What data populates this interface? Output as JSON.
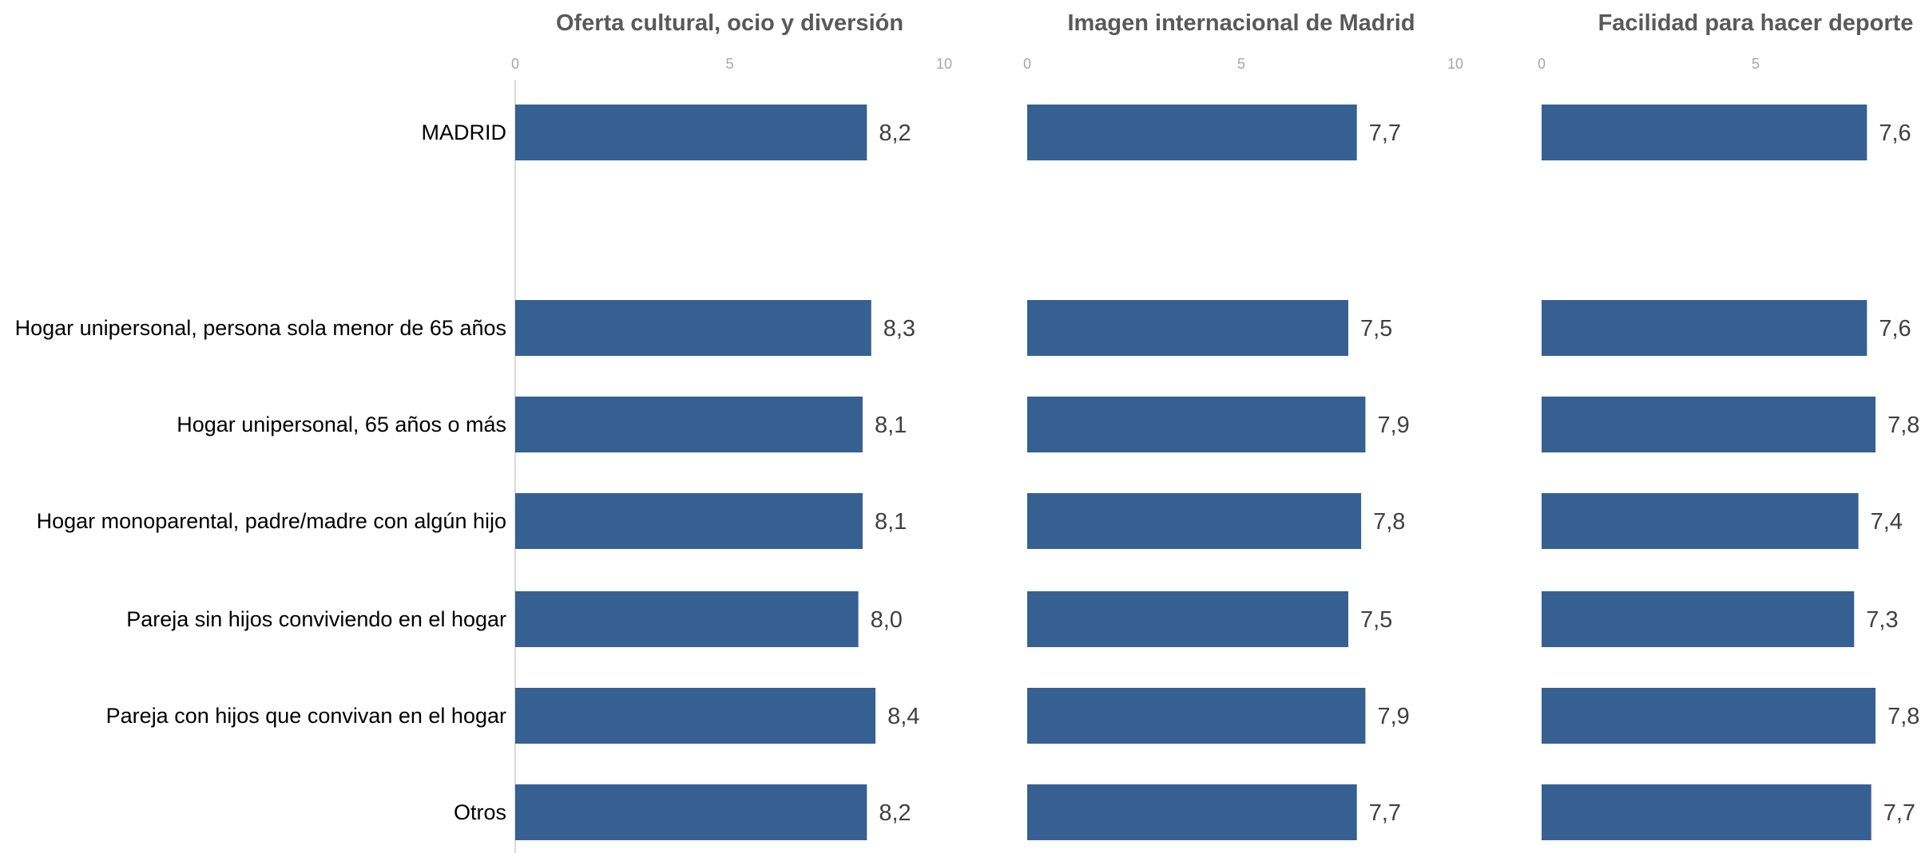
{
  "colors": {
    "bar": "#376092",
    "axis": "#d9d9d9"
  },
  "chart_data": {
    "type": "bar",
    "orientation": "horizontal",
    "categories": [
      "MADRID",
      "Hogar unipersonal, persona sola menor de 65 años",
      "Hogar unipersonal, 65 años o más",
      "Hogar monoparental, padre/madre con algún hijo",
      "Pareja sin hijos conviviendo en el hogar",
      "Pareja con hijos que convivan en el hogar",
      "Otros"
    ],
    "panels": [
      {
        "title": "Oferta cultural, ocio y diversión",
        "values": [
          8.2,
          8.3,
          8.1,
          8.1,
          8.0,
          8.4,
          8.2
        ],
        "labels": [
          "8,2",
          "8,3",
          "8,1",
          "8,1",
          "8,0",
          "8,4",
          "8,2"
        ],
        "ticks": [
          "0",
          "5",
          "10"
        ],
        "xlim": [
          0,
          10
        ]
      },
      {
        "title": "Imagen internacional de Madrid",
        "values": [
          7.7,
          7.5,
          7.9,
          7.8,
          7.5,
          7.9,
          7.7
        ],
        "labels": [
          "7,7",
          "7,5",
          "7,9",
          "7,8",
          "7,5",
          "7,9",
          "7,7"
        ],
        "ticks": [
          "0",
          "5",
          "10"
        ],
        "xlim": [
          0,
          10
        ]
      },
      {
        "title": "Facilidad para hacer deporte",
        "values": [
          7.6,
          7.6,
          7.8,
          7.4,
          7.3,
          7.8,
          7.7
        ],
        "labels": [
          "7,6",
          "7,6",
          "7,8",
          "7,4",
          "7,3",
          "7,8",
          "7,7"
        ],
        "ticks": [
          "0",
          "5"
        ],
        "xlim": [
          0,
          10
        ]
      }
    ],
    "grid": false,
    "legend": "none"
  }
}
